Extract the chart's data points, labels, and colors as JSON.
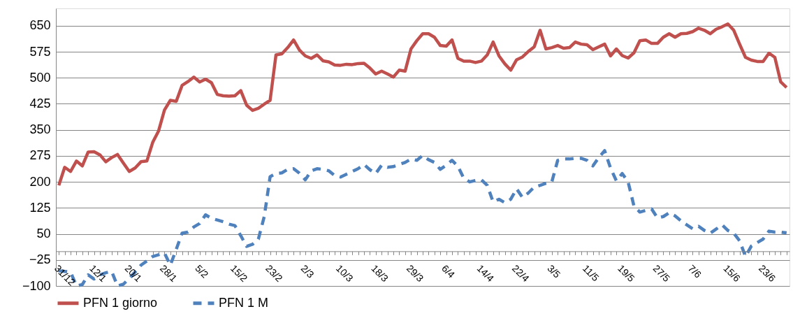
{
  "chart_data": {
    "type": "line",
    "categories": [
      "31/12",
      null,
      null,
      null,
      null,
      null,
      "12/1",
      null,
      null,
      null,
      null,
      null,
      "20/1",
      null,
      null,
      null,
      null,
      null,
      "28/1",
      null,
      null,
      null,
      null,
      null,
      "5/2",
      null,
      null,
      null,
      null,
      null,
      "15/2",
      null,
      null,
      null,
      null,
      null,
      "23/2",
      null,
      null,
      null,
      null,
      null,
      "2/3",
      null,
      null,
      null,
      null,
      null,
      "10/3",
      null,
      null,
      null,
      null,
      null,
      "18/3",
      null,
      null,
      null,
      null,
      null,
      "29/3",
      null,
      null,
      null,
      null,
      null,
      "6/4",
      null,
      null,
      null,
      null,
      null,
      "14/4",
      null,
      null,
      null,
      null,
      null,
      "22/4",
      null,
      null,
      null,
      null,
      null,
      "3/5",
      null,
      null,
      null,
      null,
      null,
      "11/5",
      null,
      null,
      null,
      null,
      null,
      "19/5",
      null,
      null,
      null,
      null,
      null,
      "27/5",
      null,
      null,
      null,
      null,
      null,
      "7/6",
      null,
      null,
      null,
      null,
      null,
      "15/6",
      null,
      null,
      null,
      null,
      null,
      "23/6",
      null,
      null,
      null,
      null
    ],
    "series": [
      {
        "name": "PFN 1 giorno",
        "color": "#c0504d",
        "line_style": "solid",
        "values": [
          190,
          242,
          230,
          260,
          246,
          286,
          287,
          278,
          258,
          270,
          279,
          254,
          230,
          240,
          258,
          260,
          314,
          347,
          407,
          435,
          432,
          478,
          489,
          502,
          488,
          496,
          486,
          452,
          448,
          447,
          448,
          463,
          421,
          406,
          412,
          424,
          435,
          566,
          569,
          587,
          609,
          580,
          563,
          556,
          566,
          549,
          546,
          537,
          536,
          539,
          538,
          541,
          542,
          528,
          511,
          519,
          511,
          502,
          522,
          519,
          583,
          607,
          627,
          627,
          617,
          593,
          591,
          609,
          556,
          548,
          548,
          544,
          548,
          566,
          603,
          563,
          540,
          522,
          552,
          560,
          576,
          589,
          637,
          583,
          587,
          593,
          585,
          587,
          603,
          597,
          595,
          581,
          589,
          597,
          563,
          583,
          564,
          557,
          572,
          607,
          609,
          599,
          599,
          617,
          627,
          617,
          627,
          628,
          633,
          643,
          637,
          627,
          640,
          647,
          655,
          637,
          597,
          559,
          551,
          547,
          547,
          571,
          559,
          488,
          472
        ]
      },
      {
        "name": "PFN 1 M",
        "color": "#4f81bd",
        "line_style": "dashed",
        "values": [
          -56,
          -58,
          -60,
          -100,
          -96,
          -68,
          -80,
          -68,
          -62,
          -58,
          -100,
          -95,
          -78,
          -60,
          -40,
          -28,
          -15,
          -10,
          -5,
          -40,
          5,
          52,
          55,
          70,
          80,
          105,
          95,
          90,
          85,
          78,
          74,
          45,
          14,
          20,
          35,
          100,
          215,
          224,
          226,
          236,
          238,
          225,
          206,
          232,
          238,
          236,
          232,
          218,
          214,
          222,
          230,
          238,
          250,
          235,
          224,
          248,
          242,
          244,
          250,
          256,
          266,
          262,
          276,
          264,
          256,
          236,
          248,
          262,
          245,
          210,
          200,
          204,
          206,
          190,
          142,
          150,
          140,
          150,
          180,
          155,
          168,
          185,
          190,
          196,
          200,
          262,
          266,
          266,
          268,
          268,
          262,
          246,
          270,
          290,
          240,
          203,
          224,
          200,
          130,
          113,
          118,
          122,
          96,
          100,
          111,
          102,
          88,
          76,
          65,
          72,
          60,
          52,
          64,
          76,
          60,
          52,
          30,
          -15,
          15,
          25,
          35,
          58,
          55,
          55,
          53
        ]
      }
    ],
    "ylim": [
      -100,
      700
    ],
    "yticks": [
      -100,
      -25,
      50,
      125,
      200,
      275,
      350,
      425,
      500,
      575,
      650
    ],
    "grid": "y",
    "legend": "bottom"
  }
}
